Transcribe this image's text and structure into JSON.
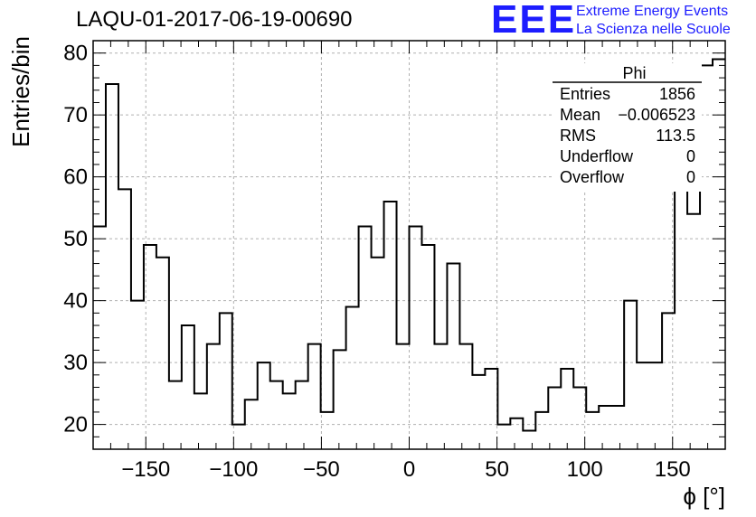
{
  "header": {
    "run_title": "LAQU-01-2017-06-19-00690",
    "logo_text": "EEE",
    "logo_line1": "Extreme Energy Events",
    "logo_line2": "La Scienza nelle Scuole",
    "logo_color": "#1d1dff"
  },
  "stats": {
    "title": "Phi",
    "rows": [
      {
        "label": "Entries",
        "value": "1856"
      },
      {
        "label": "Mean",
        "value": "−0.006523"
      },
      {
        "label": "RMS",
        "value": "113.5"
      },
      {
        "label": "Underflow",
        "value": "0"
      },
      {
        "label": "Overflow",
        "value": "0"
      }
    ]
  },
  "chart_data": {
    "type": "bar",
    "title": "Phi",
    "xlabel": "ϕ [°]",
    "ylabel": "Entries/bin",
    "xlim": [
      -180,
      180
    ],
    "ylim": [
      16,
      82
    ],
    "bin_width": 7.2,
    "xticks": [
      -150,
      -100,
      -50,
      0,
      50,
      100,
      150
    ],
    "xtick_labels": [
      "−150",
      "−100",
      "−50",
      "0",
      "50",
      "100",
      "150"
    ],
    "yticks": [
      20,
      30,
      40,
      50,
      60,
      70,
      80
    ],
    "grid": true,
    "values": [
      52,
      75,
      58,
      40,
      49,
      47,
      27,
      36,
      25,
      33,
      38,
      20,
      24,
      30,
      27,
      25,
      27,
      33,
      22,
      32,
      39,
      52,
      47,
      56,
      33,
      52,
      49,
      33,
      46,
      33,
      28,
      29,
      20,
      21,
      19,
      22,
      26,
      29,
      26,
      22,
      23,
      23,
      40,
      30,
      30,
      38,
      59,
      54,
      78,
      79
    ]
  }
}
